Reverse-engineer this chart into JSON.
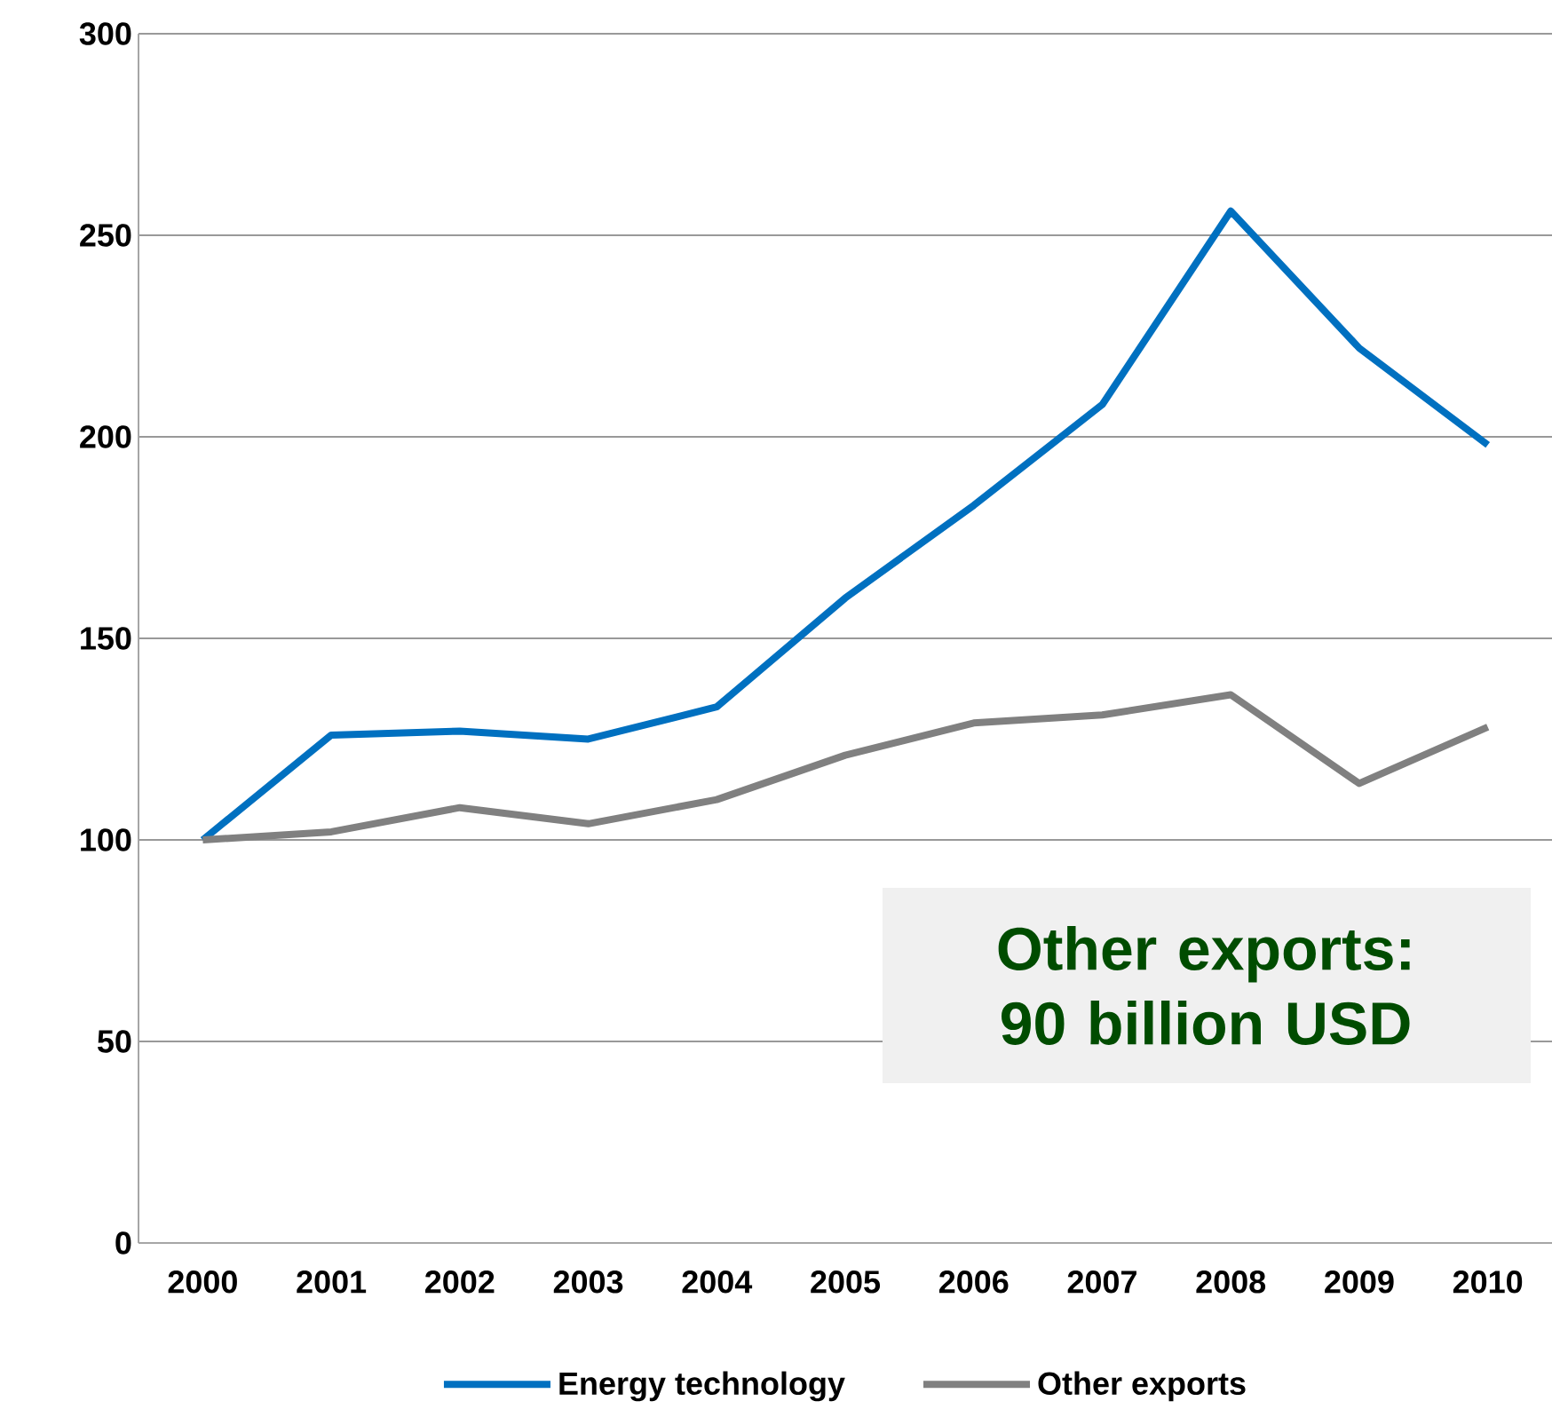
{
  "chart_data": {
    "type": "line",
    "categories": [
      "2000",
      "2001",
      "2002",
      "2003",
      "2004",
      "2005",
      "2006",
      "2007",
      "2008",
      "2009",
      "2010"
    ],
    "series": [
      {
        "name": "Energy technology",
        "color": "#0070c0",
        "values": [
          100,
          126,
          127,
          125,
          133,
          160,
          183,
          208,
          256,
          222,
          198
        ]
      },
      {
        "name": "Other exports",
        "color": "#808080",
        "values": [
          100,
          102,
          108,
          104,
          110,
          121,
          129,
          131,
          136,
          114,
          128
        ]
      }
    ],
    "ylim": [
      0,
      300
    ],
    "yticks": [
      0,
      50,
      100,
      150,
      200,
      250,
      300
    ],
    "grid": "y",
    "legend": "bottom",
    "marker": "none",
    "line_style": "solid",
    "annotations": [
      "Other exports: 90 billion USD"
    ]
  }
}
